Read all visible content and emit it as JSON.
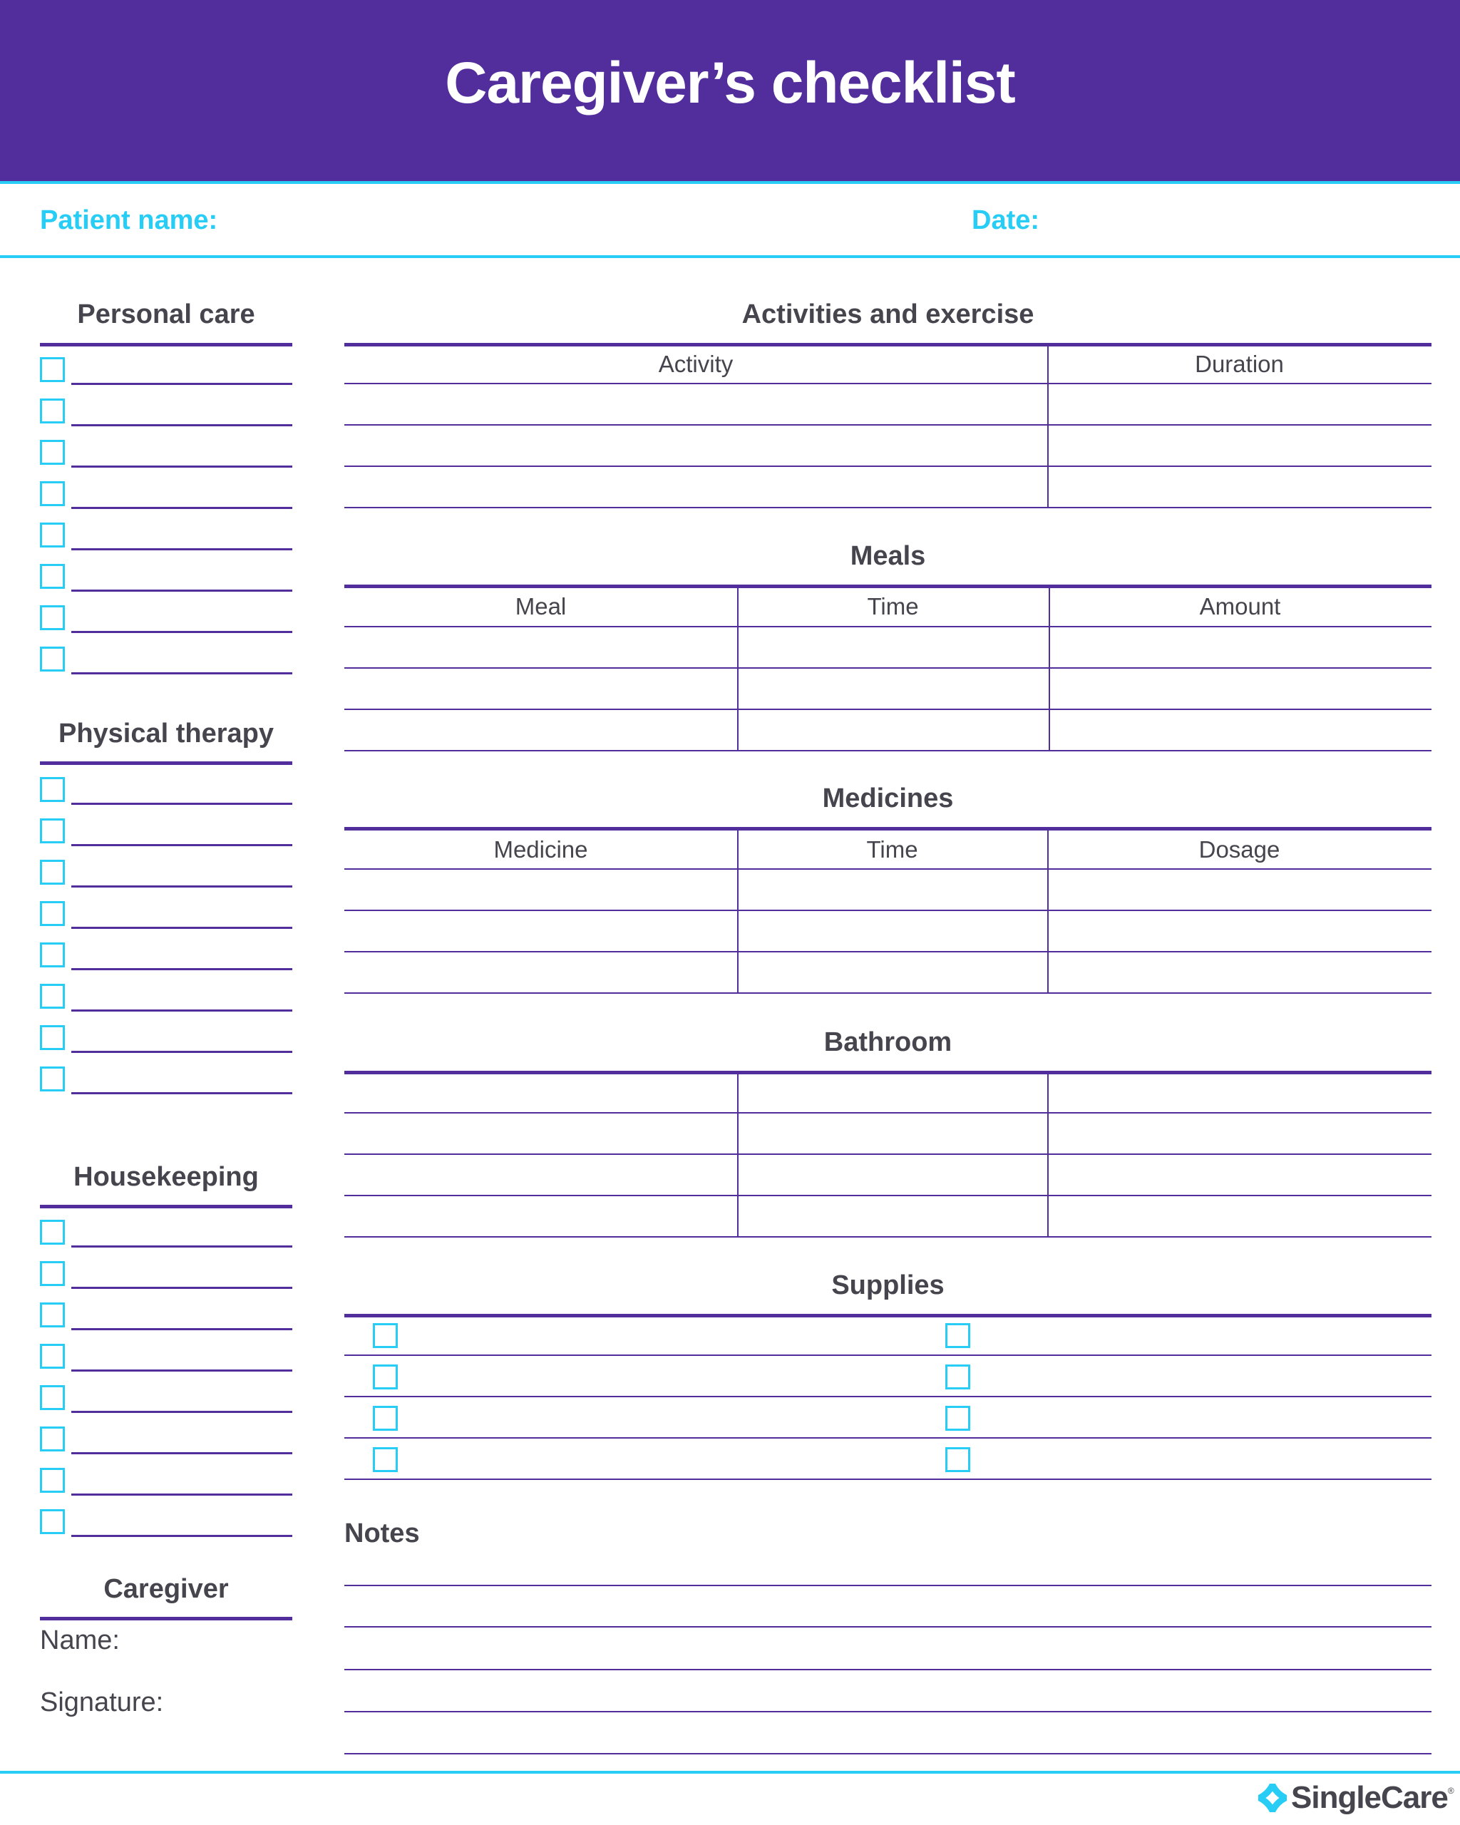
{
  "title": "Caregiver’s checklist",
  "patient_name_label": "Patient name:",
  "date_label": "Date:",
  "left": {
    "personal_care": "Personal care",
    "physical_therapy": "Physical therapy",
    "housekeeping": "Housekeeping",
    "caregiver": {
      "heading": "Caregiver",
      "name_label": "Name:",
      "signature_label": "Signature:"
    }
  },
  "activities": {
    "heading": "Activities and exercise",
    "columns": [
      "Activity",
      "Duration"
    ]
  },
  "meals": {
    "heading": "Meals",
    "columns": [
      "Meal",
      "Time",
      "Amount"
    ]
  },
  "medicines": {
    "heading": "Medicines",
    "columns": [
      "Medicine",
      "Time",
      "Dosage"
    ]
  },
  "bathroom": {
    "heading": "Bathroom"
  },
  "supplies": {
    "heading": "Supplies"
  },
  "notes": {
    "label": "Notes"
  },
  "logo": {
    "text": "SingleCare",
    "mark": "®"
  },
  "colors": {
    "brand_purple": "#522d9c",
    "accent_cyan": "#27cdf5",
    "text": "#46454d"
  }
}
